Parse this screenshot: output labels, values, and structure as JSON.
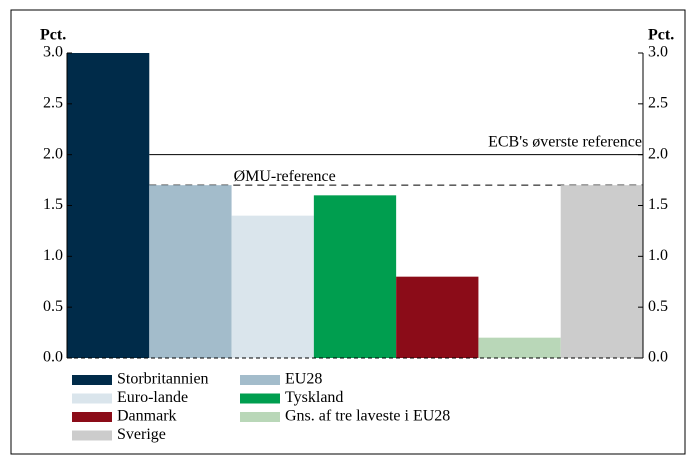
{
  "chart_data": {
    "type": "bar",
    "y_label": "Pct.",
    "y2_label": "Pct.",
    "categories": [
      "Storbritannien",
      "EU28",
      "Euro-lande",
      "Tyskland",
      "Danmark",
      "Gns. af tre laveste i EU28",
      "Sverige"
    ],
    "values": [
      3.0,
      1.7,
      1.4,
      1.6,
      0.8,
      0.2,
      1.7
    ],
    "colors": [
      "#002b49",
      "#a3bccb",
      "#dae5ec",
      "#009e4f",
      "#8b0c18",
      "#b9d7b8",
      "#cccccc"
    ],
    "ylim": [
      0,
      3
    ],
    "yticks": [
      {
        "value": 0,
        "label": "0.0"
      },
      {
        "value": 0.5,
        "label": "0.5"
      },
      {
        "value": 1,
        "label": "1.0"
      },
      {
        "value": 1.5,
        "label": "1.5"
      },
      {
        "value": 2,
        "label": "2.0"
      },
      {
        "value": 2.5,
        "label": "2.5"
      },
      {
        "value": 3,
        "label": "3.0"
      }
    ],
    "y2lim": [
      0,
      3
    ],
    "y2ticks": [
      {
        "value": 0,
        "label": "0.0"
      },
      {
        "value": 0.5,
        "label": "0.5"
      },
      {
        "value": 1,
        "label": "1.0"
      },
      {
        "value": 1.5,
        "label": "1.5"
      },
      {
        "value": 2,
        "label": "2.0"
      },
      {
        "value": 2.5,
        "label": "2.5"
      },
      {
        "value": 3,
        "label": "3.0"
      }
    ],
    "reference_lines": [
      {
        "label": "ECB's øverste reference",
        "value": 2.0,
        "style": "solid"
      },
      {
        "label": "ØMU-reference",
        "value": 1.7,
        "style": "dashed"
      }
    ],
    "legend_columns": 2
  }
}
